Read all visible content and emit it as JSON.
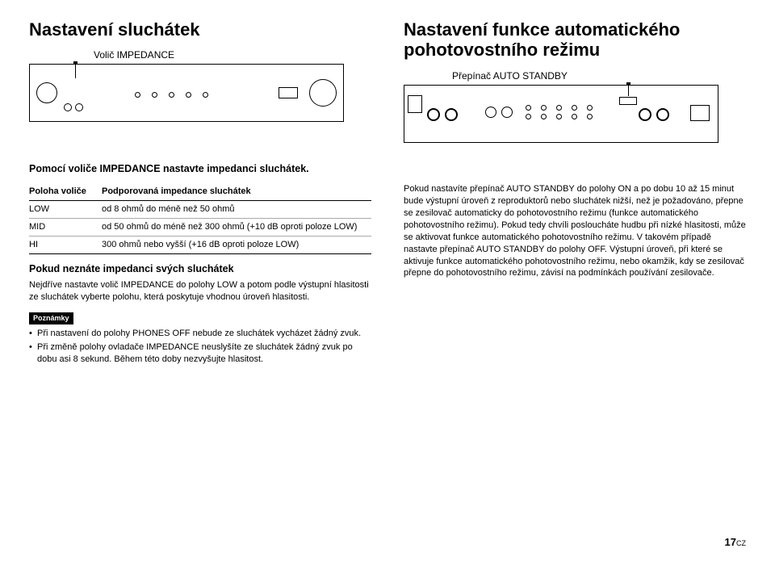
{
  "left": {
    "title": "Nastavení sluchátek",
    "selector_label": "Volič IMPEDANCE",
    "intro": "Pomocí voliče IMPEDANCE nastavte impedanci sluchátek.",
    "table": {
      "head_pos": "Poloha voliče",
      "head_imp": "Podporovaná impedance sluchátek",
      "rows": [
        {
          "pos": "LOW",
          "imp": "od 8 ohmů do méně než 50 ohmů"
        },
        {
          "pos": "MID",
          "imp": "od 50 ohmů do méně než 300 ohmů (+10 dB oproti poloze LOW)"
        },
        {
          "pos": "HI",
          "imp": "300 ohmů nebo vyšší (+16 dB oproti poloze LOW)"
        }
      ]
    },
    "h2": "Pokud neznáte impedanci svých sluchátek",
    "p1": "Nejdříve nastavte volič IMPEDANCE do polohy LOW a potom podle výstupní hlasitosti ze sluchátek vyberte polohu, která poskytuje vhodnou úroveň hlasitosti.",
    "notes_label": "Poznámky",
    "notes": [
      "Při nastavení do polohy PHONES OFF nebude ze sluchátek vycházet žádný zvuk.",
      "Při změně polohy ovladače IMPEDANCE neuslyšíte ze sluchátek žádný zvuk po dobu asi 8 sekund. Během této doby nezvyšujte hlasitost."
    ]
  },
  "right": {
    "title": "Nastavení funkce automatického pohotovostního režimu",
    "switch_label": "Přepínač AUTO STANDBY",
    "p1": "Pokud nastavíte přepínač AUTO STANDBY do polohy ON a po dobu 10 až 15 minut bude výstupní úroveň z reproduktorů nebo sluchátek nižší, než je požadováno, přepne se zesilovač automaticky do pohotovostního režimu (funkce automatického pohotovostního režimu). Pokud tedy chvíli posloucháte hudbu při nízké hlasitosti, může se aktivovat funkce automatického pohotovostního režimu. V takovém případě nastavte přepínač AUTO STANDBY do polohy OFF. Výstupní úroveň, při které se aktivuje funkce automatického pohotovostního režimu, nebo okamžik, kdy se zesilovač přepne do pohotovostního režimu, závisí na podmínkách používání zesilovače."
  },
  "page": {
    "num": "17",
    "suffix": "CZ"
  },
  "colors": {
    "text": "#000000",
    "bg": "#ffffff",
    "border_light": "#aaaaaa"
  }
}
